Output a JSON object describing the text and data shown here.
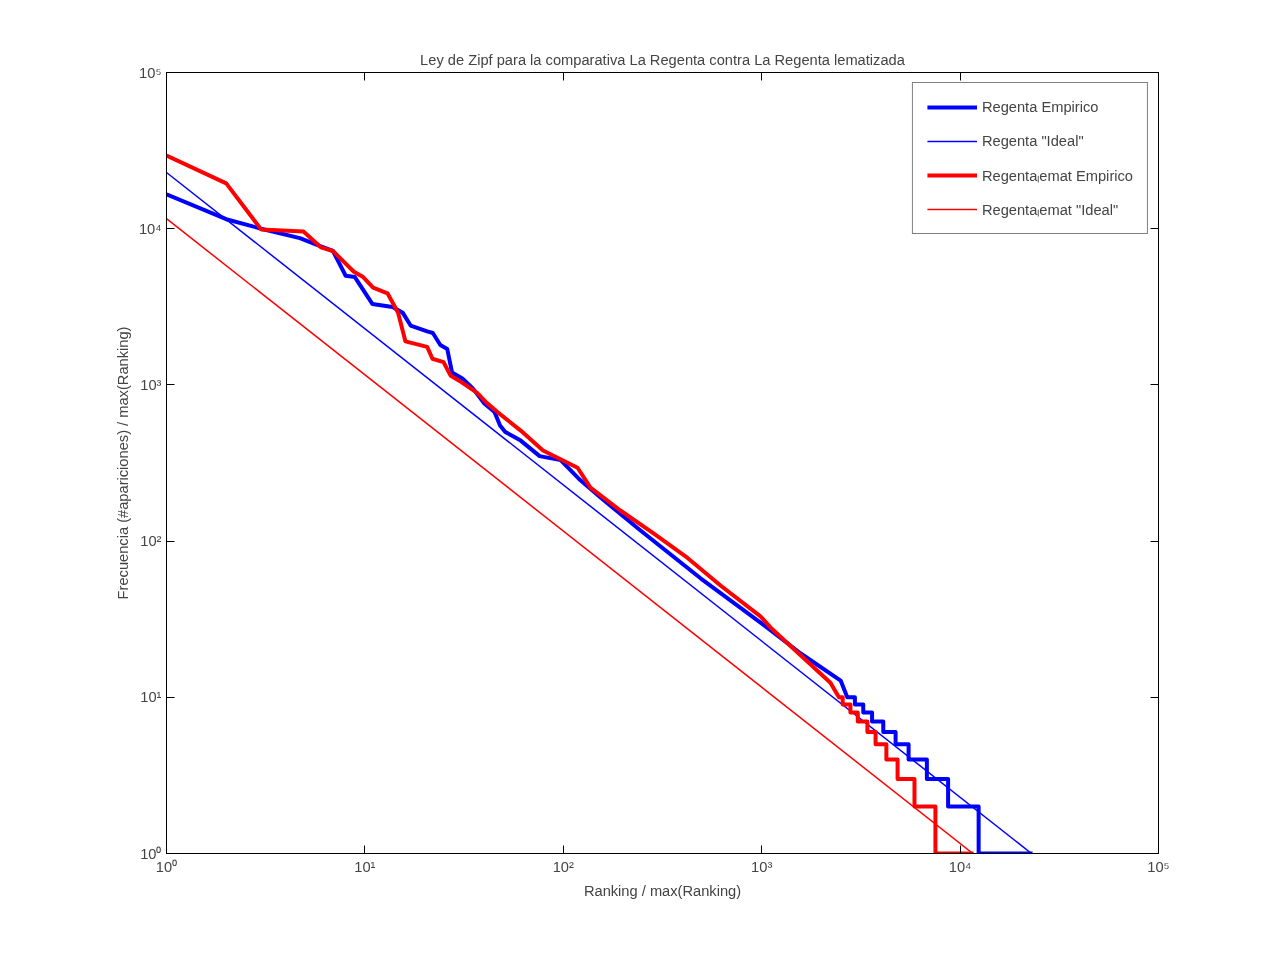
{
  "chart_data": {
    "type": "line",
    "title": "Ley de Zipf para la comparativa La Regenta contra La Regenta lematizada",
    "xlabel": "Ranking / max(Ranking)",
    "ylabel": "Frecuencia (#apariciones) / max(Ranking)",
    "log": "xy",
    "grid": false,
    "legend": "top right",
    "xlim": [
      1,
      100000
    ],
    "ylim": [
      1,
      100000
    ],
    "xticks": [
      {
        "value": 1,
        "label": "10⁰"
      },
      {
        "value": 10,
        "label": "10¹"
      },
      {
        "value": 100,
        "label": "10²"
      },
      {
        "value": 1000,
        "label": "10³"
      },
      {
        "value": 10000,
        "label": "10⁴"
      },
      {
        "value": 100000,
        "label": "10⁵"
      }
    ],
    "yticks": [
      {
        "value": 1,
        "label": "10⁰"
      },
      {
        "value": 10,
        "label": "10¹"
      },
      {
        "value": 100,
        "label": "10²"
      },
      {
        "value": 1000,
        "label": "10³"
      },
      {
        "value": 10000,
        "label": "10⁴"
      },
      {
        "value": 100000,
        "label": "10⁵"
      }
    ],
    "series": [
      {
        "name": "Regenta Empirico",
        "color": "#0000ff",
        "x": [
          1,
          2,
          3,
          4.7,
          6,
          6.9,
          8,
          8.9,
          10.9,
          13.8,
          15.5,
          17,
          20.6,
          22,
          24,
          26,
          27.5,
          31,
          35,
          40,
          45,
          48,
          51,
          61,
          76,
          97,
          122,
          154,
          245,
          490,
          990,
          1580,
          2500,
          2700,
          2950,
          2950,
          3250,
          3250,
          3600,
          3600,
          4100,
          4100,
          4730,
          4730,
          5500,
          5500,
          6800,
          6800,
          8700,
          8700,
          12400,
          12400,
          23200
        ],
        "values": [
          16600,
          11500,
          10000,
          8700,
          7700,
          7200,
          5000,
          4900,
          3300,
          3150,
          2900,
          2400,
          2200,
          2150,
          1800,
          1700,
          1200,
          1100,
          950,
          760,
          670,
          550,
          500,
          440,
          350,
          330,
          245,
          190,
          117,
          58,
          30,
          19,
          12.8,
          10,
          10,
          9,
          9,
          8,
          8,
          7,
          7,
          6,
          6,
          5,
          5,
          4,
          4,
          3,
          3,
          2,
          2,
          1,
          1
        ]
      },
      {
        "name": "Regenta \"Ideal\"",
        "color": "#0000ff",
        "x": [
          1,
          22900
        ],
        "values": [
          22900,
          1
        ]
      },
      {
        "name": "Regentaₗemat Empirico",
        "color": "#ff0000",
        "x": [
          1,
          2,
          3,
          4.9,
          6,
          6.9,
          8.8,
          9.8,
          11,
          13,
          14.7,
          16,
          20.6,
          21.9,
          24.9,
          27,
          30,
          36.8,
          41,
          46.6,
          61,
          79,
          118,
          137,
          194,
          285,
          423,
          620,
          986,
          1107,
          2220,
          2450,
          2560,
          2560,
          2800,
          2800,
          3050,
          3050,
          3410,
          3410,
          3750,
          3750,
          4250,
          4250,
          4840,
          4840,
          5890,
          5890,
          7510,
          7510,
          11700
        ],
        "values": [
          29400,
          19500,
          9900,
          9600,
          7600,
          7200,
          5300,
          4900,
          4200,
          3860,
          2900,
          1900,
          1750,
          1470,
          1400,
          1150,
          1060,
          890,
          770,
          670,
          510,
          380,
          295,
          220,
          157,
          112,
          78,
          52,
          33,
          28,
          12.4,
          10,
          10,
          9,
          9,
          8,
          8,
          7,
          7,
          6,
          6,
          5,
          5,
          4,
          4,
          3,
          3,
          2,
          2,
          1,
          1
        ]
      },
      {
        "name": "Regentaₗemat \"Ideal\"",
        "color": "#ff0000",
        "x": [
          1,
          11600
        ],
        "values": [
          11600,
          1
        ]
      }
    ]
  }
}
